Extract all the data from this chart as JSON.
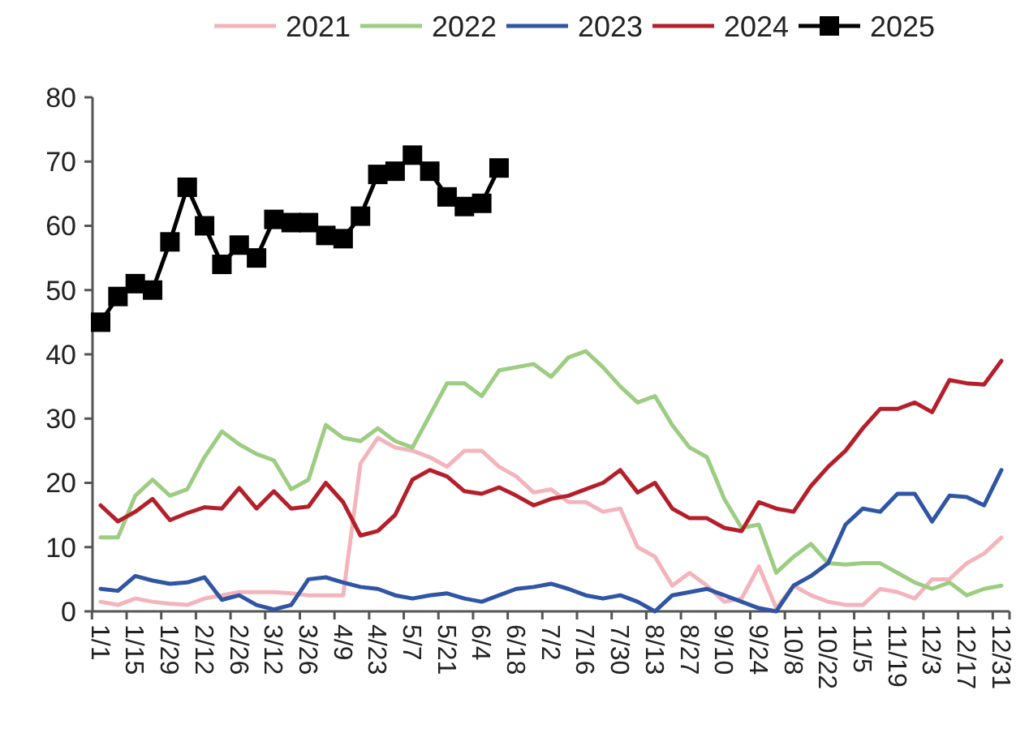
{
  "chart_data": {
    "type": "line",
    "categories": [
      "1/1",
      null,
      "1/15",
      null,
      "1/29",
      null,
      "2/12",
      null,
      "2/26",
      null,
      "3/12",
      null,
      "3/26",
      null,
      "4/9",
      null,
      "4/23",
      null,
      "5/7",
      null,
      "5/21",
      null,
      "6/4",
      null,
      "6/18",
      null,
      "7/2",
      null,
      "7/16",
      null,
      "7/30",
      null,
      "8/13",
      null,
      "8/27",
      null,
      "9/10",
      null,
      "9/24",
      null,
      "10/8",
      null,
      "10/22",
      null,
      "11/5",
      null,
      "11/19",
      null,
      "12/3",
      null,
      "12/17",
      null,
      "12/31"
    ],
    "ylim": [
      0,
      80
    ],
    "yticks": [
      0,
      10,
      20,
      30,
      40,
      50,
      60,
      70,
      80
    ],
    "grid": false,
    "legend": "top",
    "series": [
      {
        "name": "2021",
        "color": "#f4b4bc",
        "marker": "none",
        "values": [
          1.5,
          1,
          2,
          1.5,
          1.2,
          1,
          2,
          2.5,
          3,
          3,
          3,
          2.8,
          2.5,
          2.5,
          2.5,
          23,
          27,
          25.5,
          25,
          24,
          22.5,
          25,
          25,
          22.5,
          21,
          18.5,
          19,
          17,
          17,
          15.5,
          16,
          10,
          8.5,
          4,
          6,
          4,
          1.5,
          2,
          7,
          0.5,
          4,
          2.5,
          1.5,
          1,
          1,
          3.5,
          3,
          2,
          5,
          5,
          7.5,
          9,
          11.5
        ]
      },
      {
        "name": "2022",
        "color": "#9dcd82",
        "marker": "none",
        "values": [
          11.5,
          11.5,
          18,
          20.5,
          18,
          19,
          24,
          28,
          26,
          24.5,
          23.5,
          19,
          20.5,
          29,
          27,
          26.5,
          28.5,
          26.5,
          25.5,
          30.5,
          35.5,
          35.5,
          33.5,
          37.5,
          38,
          38.5,
          36.5,
          39.5,
          40.5,
          38,
          35,
          32.5,
          33.5,
          29,
          25.5,
          24,
          17.5,
          13,
          13.5,
          6,
          8.5,
          10.5,
          7.5,
          7.3,
          7.5,
          7.5,
          6,
          4.5,
          3.5,
          4.5,
          2.5,
          3.5,
          4
        ]
      },
      {
        "name": "2023",
        "color": "#2f55a4",
        "marker": "none",
        "values": [
          3.5,
          3.2,
          5.5,
          4.8,
          4.3,
          4.5,
          5.3,
          1.8,
          2.5,
          1,
          0.3,
          1,
          5,
          5.3,
          4.5,
          3.8,
          3.5,
          2.5,
          2,
          2.5,
          2.8,
          2,
          1.5,
          2.5,
          3.5,
          3.8,
          4.3,
          3.5,
          2.5,
          2,
          2.5,
          1.5,
          0,
          2.5,
          3,
          3.5,
          2.5,
          1.5,
          0.5,
          0,
          4,
          5.5,
          7.5,
          13.5,
          16,
          15.5,
          18.3,
          18.3,
          14,
          18,
          17.8,
          16.5,
          22
        ]
      },
      {
        "name": "2024",
        "color": "#b41f2a",
        "marker": "none",
        "values": [
          16.5,
          14,
          15.5,
          17.5,
          14.2,
          15.3,
          16.2,
          16,
          19.2,
          16,
          18.7,
          16,
          16.3,
          20,
          17,
          11.8,
          12.5,
          15,
          20.5,
          22,
          21,
          18.7,
          18.3,
          19.3,
          18,
          16.5,
          17.5,
          18,
          19,
          20,
          22,
          18.5,
          20,
          16,
          14.5,
          14.5,
          13,
          12.5,
          17,
          16,
          15.5,
          19.5,
          22.5,
          25,
          28.5,
          31.5,
          31.5,
          32.5,
          31,
          36,
          35.5,
          35.3,
          39
        ]
      },
      {
        "name": "2025",
        "color": "#000000",
        "marker": "square",
        "values": [
          45,
          49,
          51,
          50,
          57.5,
          66,
          60,
          54,
          57,
          55,
          61,
          60.5,
          60.5,
          58.5,
          58,
          61.5,
          68,
          68.5,
          71,
          68.5,
          64.5,
          63,
          63.5,
          69,
          null,
          null,
          null,
          null,
          null,
          null,
          null,
          null,
          null,
          null,
          null,
          null,
          null,
          null,
          null,
          null,
          null,
          null,
          null,
          null,
          null,
          null,
          null,
          null,
          null,
          null,
          null,
          null,
          null
        ]
      }
    ]
  }
}
